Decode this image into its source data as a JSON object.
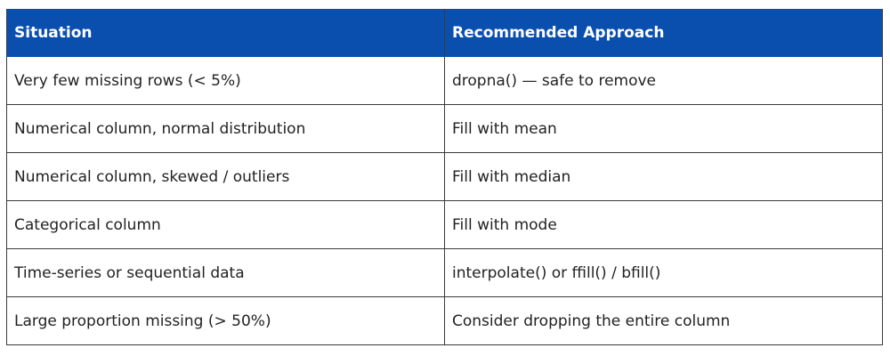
{
  "table": {
    "header": [
      "Situation",
      "Recommended Approach"
    ],
    "rows": [
      [
        "Very few missing rows (< 5%)",
        "dropna() — safe to remove"
      ],
      [
        "Numerical column, normal distribution",
        "Fill with mean"
      ],
      [
        "Numerical column, skewed / outliers",
        "Fill with median"
      ],
      [
        "Categorical column",
        "Fill with mode"
      ],
      [
        "Time-series or sequential data",
        "interpolate() or ffill() / bfill()"
      ],
      [
        "Large proportion missing (> 50%)",
        "Consider dropping the entire column"
      ]
    ]
  }
}
